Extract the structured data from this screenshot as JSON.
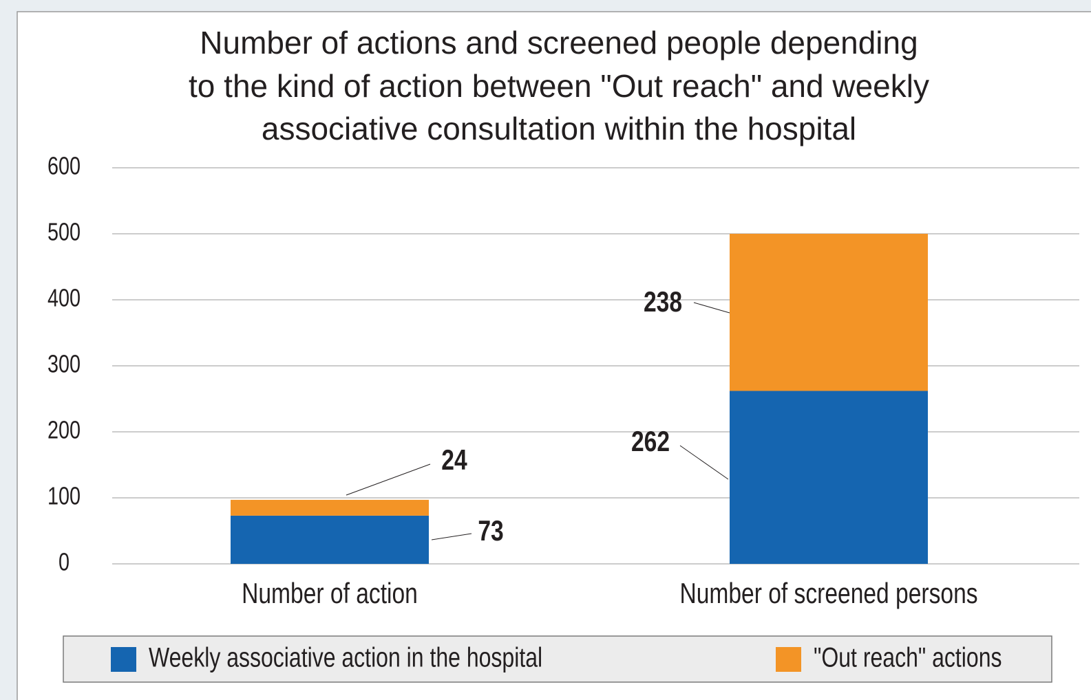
{
  "chart_data": {
    "type": "stacked_bar",
    "title": [
      "Number of actions and screened people depending",
      "to the kind of action between \"Out reach\" and weekly",
      "associative consultation within the hospital"
    ],
    "categories": [
      "Number of action",
      "Number of screened persons"
    ],
    "series": [
      {
        "name": "Weekly associative action in the hospital",
        "color": "#1565b0",
        "values": [
          73,
          262
        ]
      },
      {
        "name": "\"Out reach\" actions",
        "color": "#f39426",
        "values": [
          24,
          238
        ]
      }
    ],
    "ylim": [
      0,
      600
    ],
    "yticks": [
      0,
      100,
      200,
      300,
      400,
      500,
      600
    ],
    "grid": true,
    "legend": "bottom"
  }
}
